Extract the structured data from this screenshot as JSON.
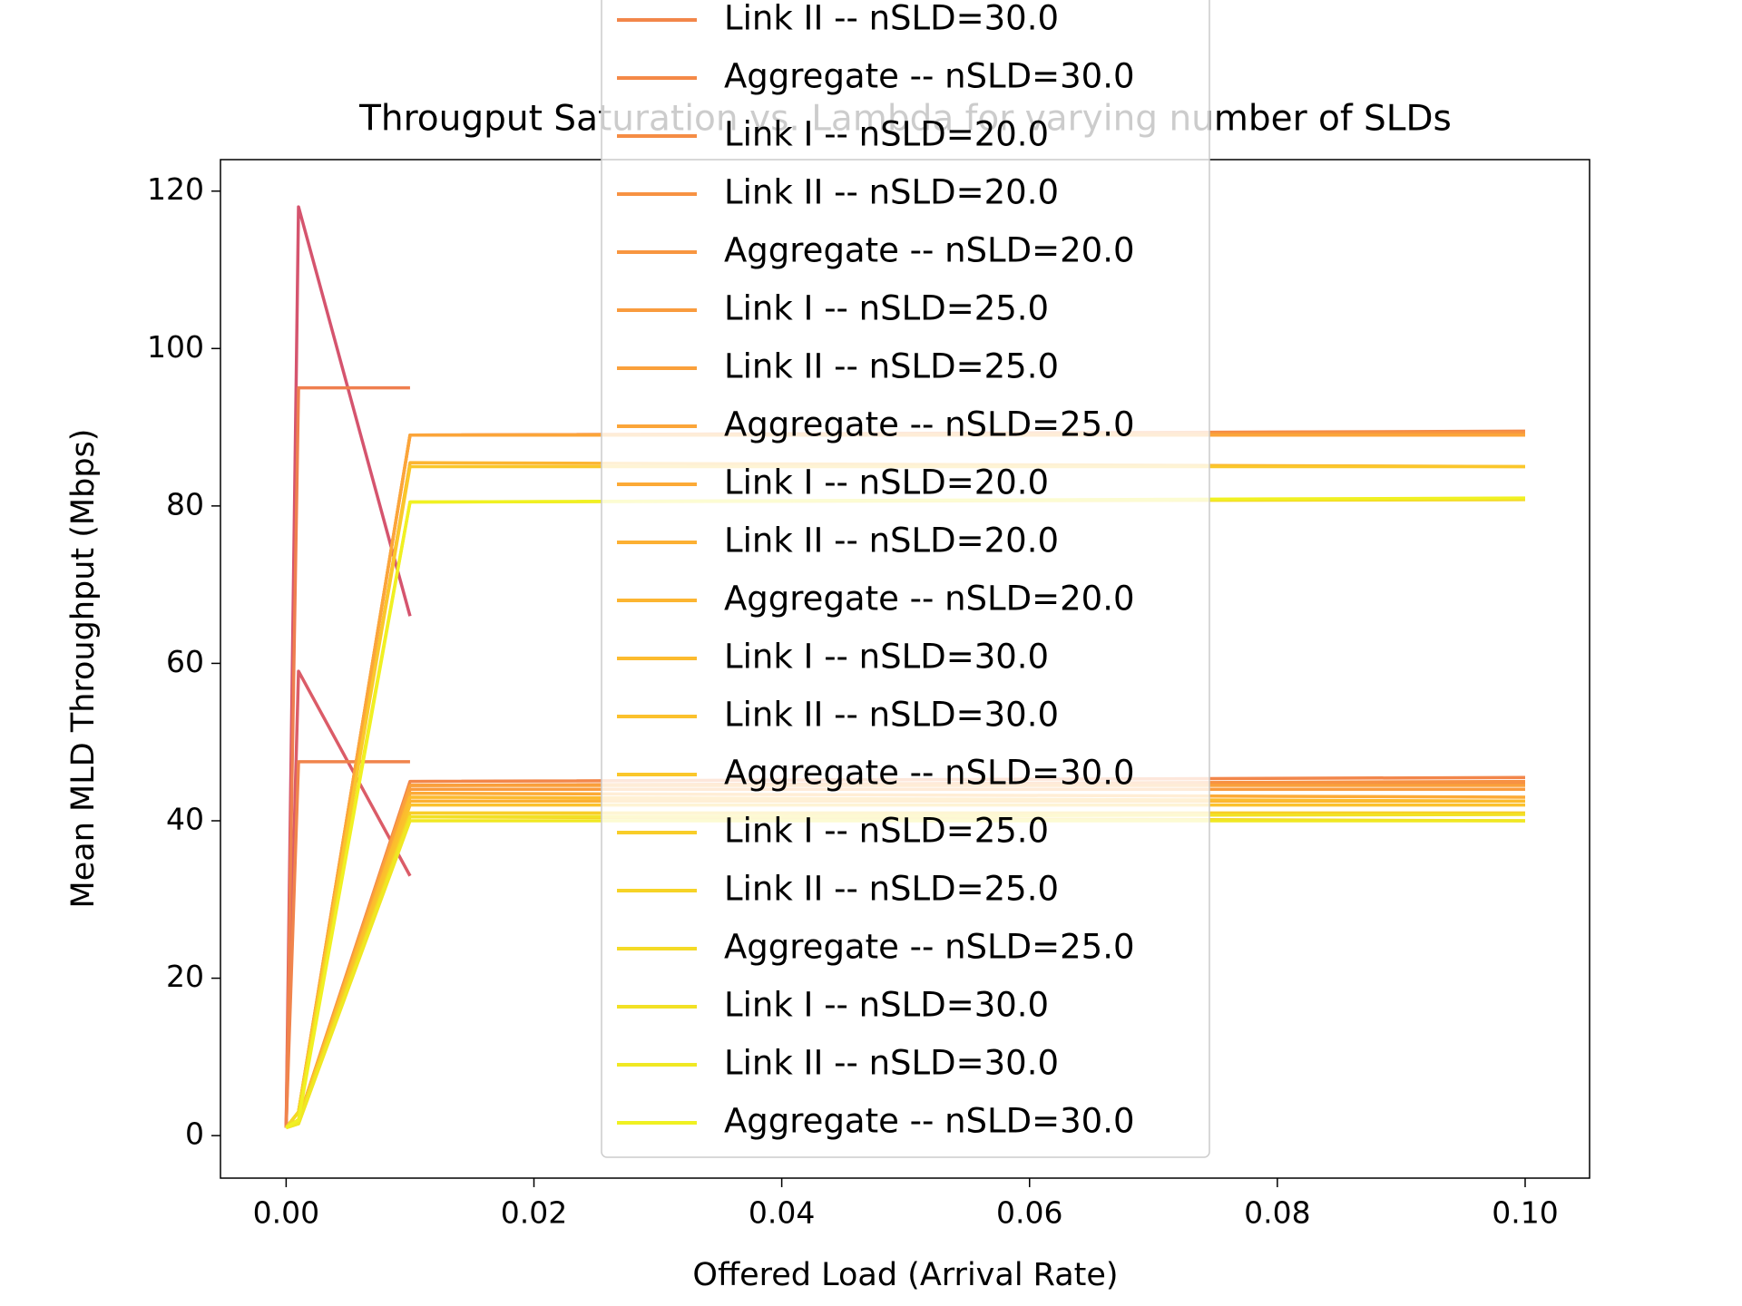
{
  "chart_data": {
    "type": "line",
    "title": "Througput Saturation vs. Lambda for varying number of SLDs",
    "x_label": "Offered Load (Arrival Rate)",
    "y_label": "Mean MLD Throughput (Mbps)",
    "x": [
      0,
      0.001,
      0.01,
      0.1
    ],
    "xlim": [
      -0.0053,
      0.1052
    ],
    "ylim": [
      -5.4,
      124
    ],
    "xticks": [
      {
        "value": 0,
        "label": "0.00"
      },
      {
        "value": 0.02,
        "label": "0.02"
      },
      {
        "value": 0.04,
        "label": "0.04"
      },
      {
        "value": 0.06,
        "label": "0.06"
      },
      {
        "value": 0.08,
        "label": "0.08"
      },
      {
        "value": 0.1,
        "label": "0.10"
      }
    ],
    "yticks": [
      0,
      20,
      40,
      60,
      80,
      100,
      120
    ],
    "grid": false,
    "legend": "upper center",
    "series": [
      {
        "color": "#d5546e",
        "values": [
          1,
          118,
          66,
          null
        ]
      },
      {
        "color": "#db5c68",
        "values": [
          1,
          59,
          33,
          null
        ]
      },
      {
        "color": "#ef7f4f",
        "values": [
          1,
          95,
          95,
          null
        ]
      },
      {
        "color": "#f0844c",
        "values": [
          1,
          47.5,
          47.5,
          null
        ]
      },
      {
        "name": "Link II -- nSLD=30.0",
        "color": "#f2864a",
        "values": [
          1,
          2,
          45,
          45.5
        ]
      },
      {
        "name": "Aggregate -- nSLD=30.0",
        "color": "#f48947",
        "values": [
          1,
          3,
          89,
          89.5
        ]
      },
      {
        "name": "Link I -- nSLD=20.0",
        "color": "#f58d45",
        "values": [
          1,
          2,
          44.5,
          44.8
        ]
      },
      {
        "name": "Link II -- nSLD=20.0",
        "color": "#f79243",
        "values": [
          1,
          2,
          44.5,
          45
        ]
      },
      {
        "name": "Aggregate -- nSLD=20.0",
        "color": "#f89640",
        "values": [
          1,
          3,
          89,
          89.3
        ]
      },
      {
        "name": "Link I -- nSLD=25.0",
        "color": "#f99b3e",
        "values": [
          1,
          2,
          44,
          44
        ]
      },
      {
        "name": "Link II -- nSLD=25.0",
        "color": "#faa03b",
        "values": [
          1,
          2,
          44.5,
          44.5
        ]
      },
      {
        "name": "Aggregate -- nSLD=25.0",
        "color": "#fba539",
        "values": [
          1,
          3,
          89,
          89
        ]
      },
      {
        "name": "Link I -- nSLD=20.0",
        "color": "#fcaa36",
        "values": [
          1,
          2,
          43.5,
          43
        ]
      },
      {
        "name": "Link II -- nSLD=20.0",
        "color": "#fcb033",
        "values": [
          1,
          2,
          42.5,
          42.5
        ]
      },
      {
        "name": "Aggregate -- nSLD=20.0",
        "color": "#fcb531",
        "values": [
          1,
          3,
          85.5,
          85
        ]
      },
      {
        "name": "Link I -- nSLD=30.0",
        "color": "#fcbb2e",
        "values": [
          1,
          2,
          43,
          42.5
        ]
      },
      {
        "name": "Link II -- nSLD=30.0",
        "color": "#fbc12c",
        "values": [
          1,
          2,
          42,
          42
        ]
      },
      {
        "name": "Aggregate -- nSLD=30.0",
        "color": "#fac72a",
        "values": [
          1,
          3,
          85,
          85
        ]
      },
      {
        "name": "Link I -- nSLD=25.0",
        "color": "#f8cd28",
        "values": [
          1,
          2,
          41,
          41
        ]
      },
      {
        "name": "Link II -- nSLD=25.0",
        "color": "#f6d326",
        "values": [
          1,
          2,
          40.5,
          40
        ]
      },
      {
        "name": "Aggregate -- nSLD=25.0",
        "color": "#f4da25",
        "values": [
          1,
          3,
          80.5,
          80.8
        ]
      },
      {
        "name": "Link I -- nSLD=30.0",
        "color": "#f2e124",
        "values": [
          1,
          1.5,
          40.5,
          40.8
        ]
      },
      {
        "name": "Link II -- nSLD=30.0",
        "color": "#f0e823",
        "values": [
          1,
          1.5,
          40,
          40
        ]
      },
      {
        "name": "Aggregate -- nSLD=30.0",
        "color": "#f0f122",
        "values": [
          1,
          2,
          80.5,
          81
        ]
      }
    ]
  }
}
